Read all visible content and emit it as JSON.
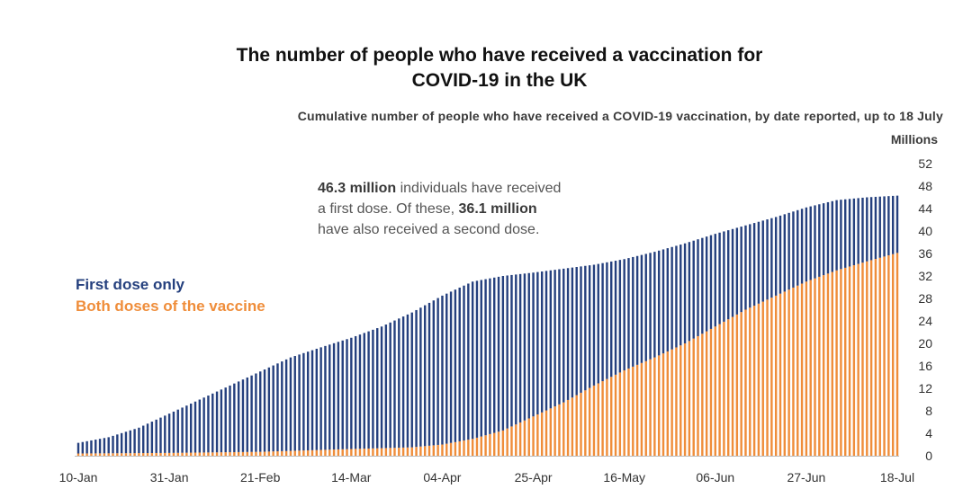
{
  "chart_data": {
    "type": "bar",
    "stacked": true,
    "title_line1": "The number of people who have received a vaccination for",
    "title_line2": "COVID-19 in the UK",
    "subtitle": "Cumulative number of people who have received a COVID-19 vaccination, by date reported, up to 18 July",
    "ylabel": "Millions",
    "ylim": [
      0,
      52
    ],
    "yticks": [
      0,
      4,
      8,
      12,
      16,
      20,
      24,
      28,
      32,
      36,
      40,
      44,
      48,
      52
    ],
    "x_tick_labels": [
      "10-Jan",
      "31-Jan",
      "21-Feb",
      "14-Mar",
      "04-Apr",
      "25-Apr",
      "16-May",
      "06-Jun",
      "27-Jun",
      "18-Jul"
    ],
    "x_range_days": [
      0,
      189
    ],
    "annotation": {
      "first_value": "46.3 million",
      "first_text": " individuals have received",
      "line2_text": "a first dose. Of these, ",
      "second_value": "36.1 million",
      "line3_text": "have also received a second dose."
    },
    "colors": {
      "first_dose_only": "#25407e",
      "both_doses": "#ef8d3a"
    },
    "series": [
      {
        "name": "First dose only",
        "note": "total people with at least one dose (millions), keyed by day offset from 10-Jan",
        "total_keyframes": [
          [
            0,
            2.3
          ],
          [
            7,
            3.3
          ],
          [
            14,
            5.0
          ],
          [
            21,
            7.5
          ],
          [
            28,
            10.0
          ],
          [
            35,
            12.5
          ],
          [
            42,
            15.0
          ],
          [
            49,
            17.5
          ],
          [
            56,
            19.3
          ],
          [
            63,
            21.0
          ],
          [
            70,
            23.0
          ],
          [
            77,
            25.5
          ],
          [
            84,
            28.5
          ],
          [
            91,
            31.0
          ],
          [
            98,
            32.0
          ],
          [
            105,
            32.6
          ],
          [
            112,
            33.3
          ],
          [
            119,
            34.0
          ],
          [
            126,
            35.0
          ],
          [
            133,
            36.3
          ],
          [
            140,
            37.8
          ],
          [
            147,
            39.5
          ],
          [
            154,
            41.0
          ],
          [
            161,
            42.5
          ],
          [
            168,
            44.2
          ],
          [
            175,
            45.5
          ],
          [
            182,
            46.0
          ],
          [
            189,
            46.3
          ]
        ]
      },
      {
        "name": "Both doses of the vaccine",
        "note": "people with both doses (millions), keyed by day offset from 10-Jan",
        "second_keyframes": [
          [
            0,
            0.4
          ],
          [
            21,
            0.5
          ],
          [
            42,
            0.7
          ],
          [
            63,
            1.2
          ],
          [
            77,
            1.5
          ],
          [
            84,
            2.0
          ],
          [
            91,
            3.0
          ],
          [
            98,
            4.5
          ],
          [
            105,
            7.0
          ],
          [
            112,
            9.5
          ],
          [
            119,
            12.5
          ],
          [
            126,
            15.2
          ],
          [
            133,
            17.5
          ],
          [
            140,
            20.0
          ],
          [
            147,
            23.0
          ],
          [
            154,
            26.0
          ],
          [
            161,
            28.5
          ],
          [
            168,
            31.0
          ],
          [
            175,
            33.0
          ],
          [
            182,
            34.6
          ],
          [
            189,
            36.1
          ]
        ]
      }
    ]
  }
}
